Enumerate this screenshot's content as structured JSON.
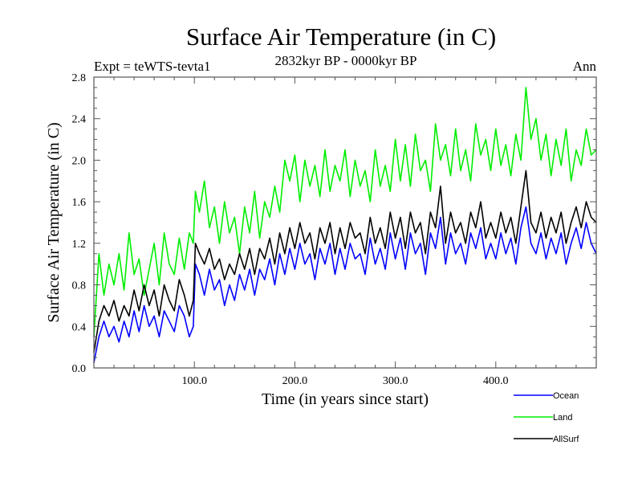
{
  "chart_data": {
    "type": "line",
    "title": "Surface Air Temperature (in C)",
    "subtitle_left": "Expt = teWTS-tevta1",
    "subtitle_center": "2832kyr BP - 0000kyr BP",
    "subtitle_right": "Ann",
    "xlabel": "Time (in years since start)",
    "ylabel": "Surface Air Temperature (in C)",
    "xlim": [
      0,
      500
    ],
    "ylim": [
      0.0,
      2.8
    ],
    "xticks": [
      100,
      200,
      300,
      400
    ],
    "xtick_labels": [
      "100.0",
      "200.0",
      "300.0",
      "400.0"
    ],
    "yticks": [
      0.0,
      0.4,
      0.8,
      1.2,
      1.6,
      2.0,
      2.4,
      2.8
    ],
    "ytick_labels": [
      "0.0",
      "0.4",
      "0.8",
      "1.2",
      "1.6",
      "2.0",
      "2.4",
      "2.8"
    ],
    "grid": false,
    "legend_position": "bottom-right, below plot",
    "x": [
      0,
      5,
      10,
      15,
      20,
      25,
      30,
      35,
      40,
      45,
      50,
      55,
      60,
      65,
      70,
      75,
      80,
      85,
      90,
      95,
      99,
      101,
      105,
      110,
      115,
      120,
      125,
      130,
      135,
      140,
      145,
      150,
      155,
      160,
      165,
      170,
      175,
      180,
      185,
      190,
      195,
      200,
      205,
      210,
      215,
      220,
      225,
      230,
      235,
      240,
      245,
      250,
      255,
      260,
      265,
      270,
      275,
      280,
      285,
      290,
      295,
      300,
      305,
      310,
      315,
      320,
      325,
      330,
      335,
      340,
      345,
      350,
      355,
      360,
      365,
      370,
      375,
      380,
      385,
      390,
      395,
      400,
      405,
      410,
      415,
      420,
      425,
      430,
      435,
      440,
      445,
      450,
      455,
      460,
      465,
      470,
      475,
      480,
      485,
      490,
      495,
      500
    ],
    "series": [
      {
        "name": "Ocean",
        "color": "#0000ff",
        "values": [
          0.05,
          0.3,
          0.45,
          0.3,
          0.4,
          0.25,
          0.45,
          0.3,
          0.55,
          0.35,
          0.6,
          0.4,
          0.5,
          0.3,
          0.55,
          0.45,
          0.35,
          0.6,
          0.5,
          0.3,
          0.4,
          1.0,
          0.9,
          0.7,
          0.95,
          0.75,
          0.85,
          0.6,
          0.8,
          0.65,
          0.9,
          0.75,
          0.95,
          0.7,
          0.95,
          0.85,
          1.05,
          0.8,
          1.1,
          0.9,
          1.15,
          0.95,
          1.2,
          1.0,
          1.1,
          0.85,
          1.15,
          1.0,
          1.2,
          0.9,
          1.15,
          0.95,
          1.2,
          1.05,
          1.1,
          0.9,
          1.25,
          1.0,
          1.15,
          0.95,
          1.3,
          1.05,
          1.25,
          0.95,
          1.3,
          1.1,
          1.2,
          0.9,
          1.3,
          1.15,
          1.45,
          1.0,
          1.3,
          1.1,
          1.2,
          1.0,
          1.3,
          1.15,
          1.35,
          1.05,
          1.2,
          1.05,
          1.3,
          1.1,
          1.25,
          1.0,
          1.35,
          1.55,
          1.2,
          1.1,
          1.3,
          1.05,
          1.25,
          1.1,
          1.3,
          1.0,
          1.2,
          1.35,
          1.15,
          1.4,
          1.2,
          1.1
        ]
      },
      {
        "name": "Land",
        "color": "#00ee00",
        "values": [
          0.3,
          1.1,
          0.7,
          1.0,
          0.8,
          1.1,
          0.75,
          1.3,
          0.9,
          1.05,
          0.7,
          0.95,
          1.2,
          0.8,
          1.3,
          1.0,
          0.9,
          1.25,
          0.95,
          1.3,
          1.2,
          1.7,
          1.5,
          1.8,
          1.35,
          1.55,
          1.2,
          1.6,
          1.3,
          1.45,
          1.1,
          1.55,
          1.3,
          1.7,
          1.25,
          1.6,
          1.45,
          1.75,
          1.5,
          2.0,
          1.8,
          2.05,
          1.6,
          2.0,
          1.75,
          1.95,
          1.65,
          2.1,
          1.7,
          1.95,
          1.8,
          2.1,
          1.65,
          2.0,
          1.75,
          1.9,
          1.6,
          2.1,
          1.75,
          1.95,
          1.7,
          2.2,
          1.8,
          2.15,
          1.75,
          2.25,
          1.9,
          2.0,
          1.7,
          2.35,
          2.0,
          2.15,
          1.85,
          2.3,
          1.9,
          2.1,
          1.8,
          2.35,
          2.05,
          2.2,
          1.9,
          2.3,
          1.95,
          2.15,
          1.85,
          2.25,
          2.0,
          2.7,
          2.2,
          2.4,
          2.0,
          2.25,
          1.85,
          2.2,
          1.95,
          2.3,
          1.8,
          2.1,
          1.95,
          2.3,
          2.05,
          2.1
        ]
      },
      {
        "name": "AllSurf",
        "color": "#000000",
        "values": [
          0.15,
          0.45,
          0.6,
          0.5,
          0.65,
          0.45,
          0.6,
          0.5,
          0.75,
          0.55,
          0.8,
          0.6,
          0.75,
          0.5,
          0.8,
          0.65,
          0.55,
          0.85,
          0.7,
          0.5,
          0.65,
          1.2,
          1.1,
          1.0,
          1.15,
          0.95,
          1.05,
          0.85,
          1.0,
          0.9,
          1.1,
          0.95,
          1.15,
          0.9,
          1.15,
          1.05,
          1.25,
          1.0,
          1.3,
          1.1,
          1.35,
          1.15,
          1.4,
          1.2,
          1.3,
          1.05,
          1.35,
          1.2,
          1.4,
          1.1,
          1.35,
          1.15,
          1.4,
          1.25,
          1.3,
          1.1,
          1.45,
          1.2,
          1.35,
          1.15,
          1.5,
          1.25,
          1.45,
          1.15,
          1.5,
          1.3,
          1.4,
          1.1,
          1.5,
          1.35,
          1.75,
          1.2,
          1.5,
          1.3,
          1.4,
          1.2,
          1.5,
          1.35,
          1.6,
          1.25,
          1.4,
          1.25,
          1.5,
          1.3,
          1.45,
          1.2,
          1.55,
          1.9,
          1.4,
          1.3,
          1.5,
          1.25,
          1.45,
          1.3,
          1.5,
          1.2,
          1.4,
          1.55,
          1.35,
          1.6,
          1.45,
          1.4
        ]
      }
    ]
  }
}
